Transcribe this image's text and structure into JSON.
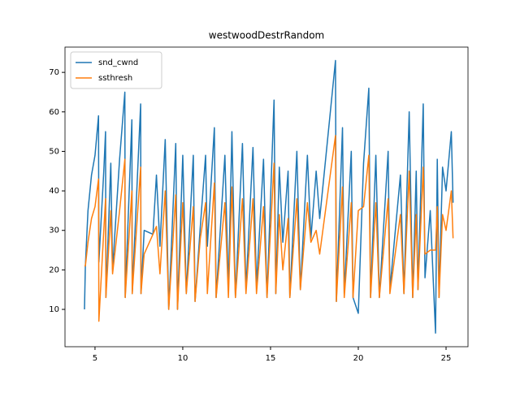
{
  "chart_data": {
    "type": "line",
    "title": "westwoodDestrRandom",
    "x": [
      4.4,
      4.45,
      4.6,
      4.8,
      5.0,
      5.2,
      5.22,
      5.5,
      5.6,
      5.62,
      5.9,
      6.0,
      6.4,
      6.7,
      6.72,
      7.1,
      7.12,
      7.6,
      7.62,
      7.8,
      8.3,
      8.5,
      8.7,
      9.0,
      9.2,
      9.6,
      9.7,
      10.0,
      10.2,
      10.6,
      10.7,
      11.0,
      11.3,
      11.4,
      11.8,
      11.9,
      12.4,
      12.6,
      12.8,
      13.0,
      13.4,
      13.6,
      14.0,
      14.2,
      14.6,
      14.8,
      15.2,
      15.3,
      15.5,
      15.7,
      16.0,
      16.1,
      16.5,
      16.7,
      17.1,
      17.3,
      17.6,
      17.8,
      18.7,
      18.75,
      19.1,
      19.2,
      19.6,
      19.7,
      20.0,
      20.3,
      20.6,
      20.7,
      21.0,
      21.2,
      21.7,
      21.8,
      22.4,
      22.6,
      22.9,
      23.1,
      23.3,
      23.4,
      23.7,
      23.8,
      24.1,
      24.4,
      24.5,
      24.6,
      24.8,
      25.0,
      25.3,
      25.4
    ],
    "series": [
      {
        "name": "snd_cwnd",
        "color": "#1f77b4",
        "values": [
          10,
          21,
          35,
          44,
          49,
          59,
          22,
          45,
          55,
          13,
          47,
          20,
          48,
          65,
          13,
          58,
          14,
          62,
          14,
          30,
          29,
          44,
          26,
          53,
          10,
          52,
          10,
          49,
          14,
          49,
          12,
          31,
          49,
          26,
          56,
          13,
          49,
          15,
          55,
          13,
          52,
          15,
          51,
          16,
          48,
          13,
          63,
          14,
          46,
          27,
          45,
          13,
          50,
          15,
          49,
          28,
          45,
          33,
          73,
          12,
          56,
          14,
          50,
          13,
          9,
          47,
          66,
          13,
          49,
          13,
          50,
          15,
          44,
          14,
          60,
          13,
          45,
          15,
          62,
          18,
          35,
          4,
          48,
          13,
          46,
          40,
          55,
          37
        ]
      },
      {
        "name": "ssthresh",
        "color": "#ff7f0e",
        "values": [
          21,
          21,
          27,
          33,
          36,
          43,
          7,
          30,
          38,
          13,
          35,
          19,
          35,
          48,
          13,
          40,
          14,
          46,
          14,
          24,
          29,
          31,
          19,
          40,
          10,
          39,
          10,
          37,
          14,
          36,
          12,
          28,
          37,
          14,
          42,
          13,
          37,
          13,
          41,
          13,
          38,
          14,
          38,
          14,
          36,
          13,
          47,
          14,
          34,
          20,
          33,
          13,
          38,
          15,
          37,
          27,
          30,
          24,
          54,
          12,
          41,
          13,
          37,
          13,
          35,
          36,
          49,
          13,
          37,
          13,
          38,
          14,
          34,
          14,
          45,
          13,
          34,
          15,
          46,
          24,
          25,
          25,
          36,
          13,
          34,
          30,
          40,
          28
        ]
      }
    ],
    "xlim": [
      3.29,
      26.25
    ],
    "ylim": [
      0.55,
      76.4
    ],
    "xticks": [
      5,
      10,
      15,
      20,
      25
    ],
    "yticks": [
      10,
      20,
      30,
      40,
      50,
      60,
      70
    ],
    "legend": "upper left"
  }
}
